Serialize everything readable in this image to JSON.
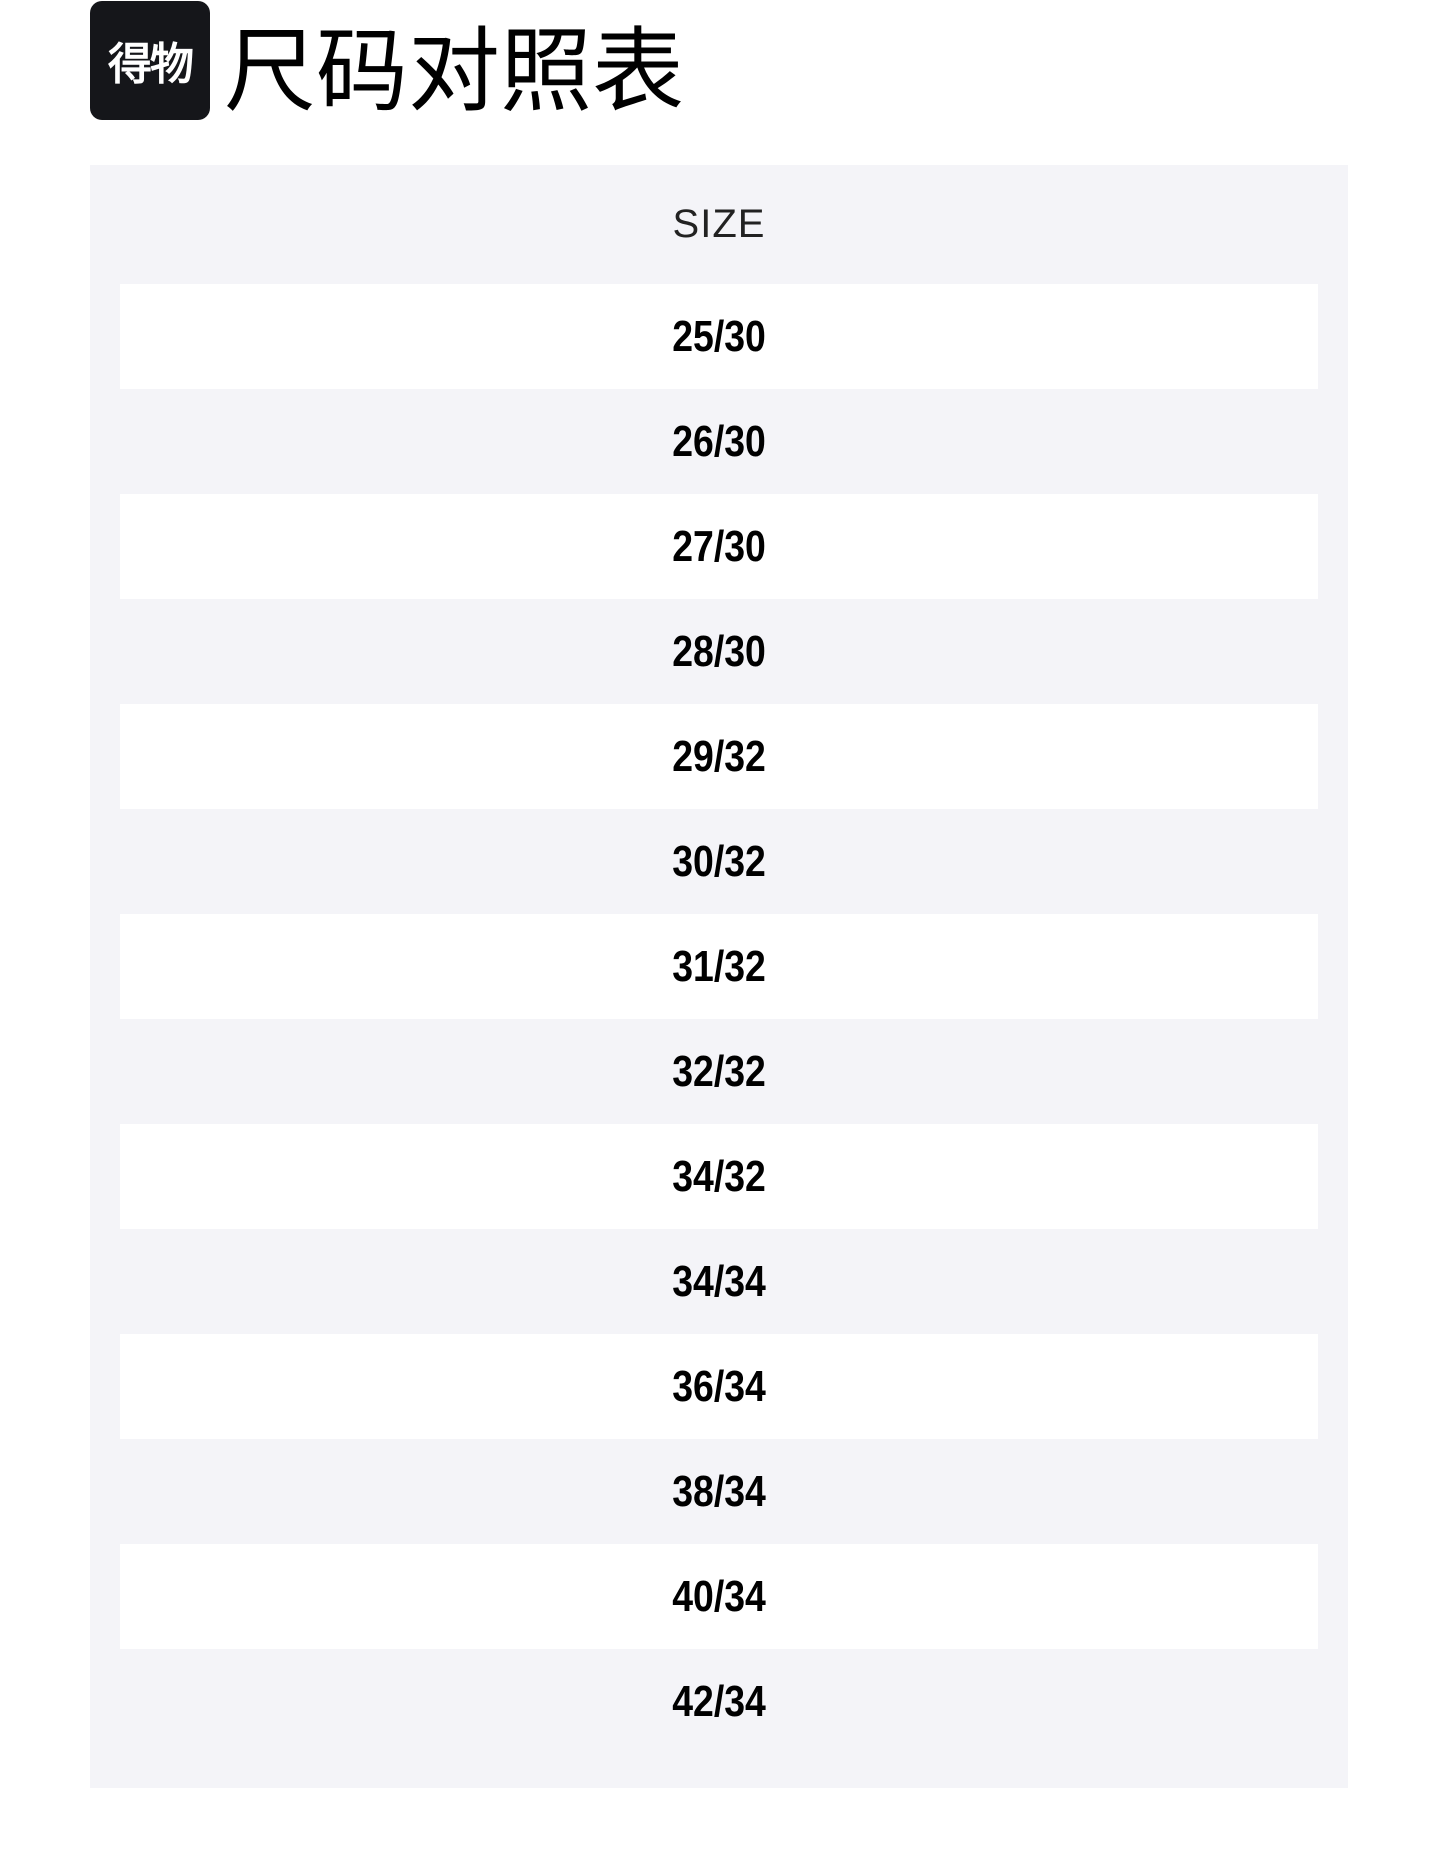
{
  "header": {
    "logo_text": "得物",
    "title": "尺码对照表"
  },
  "table": {
    "column_header": "SIZE",
    "rows": [
      "25/30",
      "26/30",
      "27/30",
      "28/30",
      "29/32",
      "30/32",
      "31/32",
      "32/32",
      "34/32",
      "34/34",
      "36/34",
      "38/34",
      "40/34",
      "42/34"
    ]
  }
}
